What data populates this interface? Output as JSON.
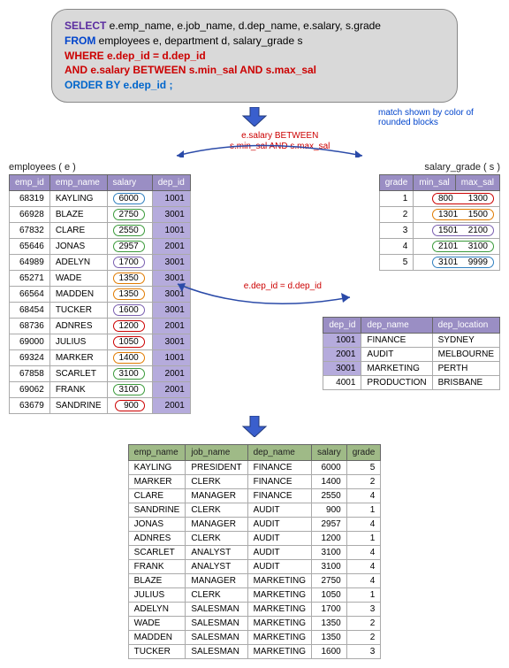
{
  "sql": {
    "select": "SELECT",
    "select_cols": " e.emp_name,  e.job_name, d.dep_name, e.salary, s.grade",
    "from": "FROM",
    "from_tbls": " employees e, department d, salary_grade s",
    "where": "WHERE",
    "where_cond": " e.dep_id = d.dep_id",
    "and": "AND",
    "and_cond": " e.salary BETWEEN s.min_sal AND s.max_sal",
    "order": "ORDER BY",
    "order_cols": " e.dep_id ;"
  },
  "note_match": "match shown by color of rounded blocks",
  "rel1_a": "e.salary BETWEEN",
  "rel1_b": "s.min_sal AND s.max_sal",
  "rel2": "e.dep_id = d.dep_id",
  "emp_title": "employees ( e )",
  "grade_title": "salary_grade ( s )",
  "emp_headers": [
    "emp_id",
    "emp_name",
    "salary",
    "dep_id"
  ],
  "grade_headers": [
    "grade",
    "min_sal",
    "max_sal"
  ],
  "dep_headers": [
    "dep_id",
    "dep_name",
    "dep_location"
  ],
  "result_headers": [
    "emp_name",
    "job_name",
    "dep_name",
    "salary",
    "grade"
  ],
  "pill_colors": {
    "g1": "#cc0000",
    "g2": "#e07b00",
    "g3": "#7a5fb0",
    "g4": "#3a9a3a",
    "g5": "#2f7fbf"
  },
  "employees": [
    {
      "id": "68319",
      "name": "KAYLING",
      "sal": "6000",
      "dep": "1001",
      "g": "g5"
    },
    {
      "id": "66928",
      "name": "BLAZE",
      "sal": "2750",
      "dep": "3001",
      "g": "g4"
    },
    {
      "id": "67832",
      "name": "CLARE",
      "sal": "2550",
      "dep": "1001",
      "g": "g4"
    },
    {
      "id": "65646",
      "name": "JONAS",
      "sal": "2957",
      "dep": "2001",
      "g": "g4"
    },
    {
      "id": "64989",
      "name": "ADELYN",
      "sal": "1700",
      "dep": "3001",
      "g": "g3"
    },
    {
      "id": "65271",
      "name": "WADE",
      "sal": "1350",
      "dep": "3001",
      "g": "g2"
    },
    {
      "id": "66564",
      "name": "MADDEN",
      "sal": "1350",
      "dep": "3001",
      "g": "g2"
    },
    {
      "id": "68454",
      "name": "TUCKER",
      "sal": "1600",
      "dep": "3001",
      "g": "g3"
    },
    {
      "id": "68736",
      "name": "ADNRES",
      "sal": "1200",
      "dep": "2001",
      "g": "g1"
    },
    {
      "id": "69000",
      "name": "JULIUS",
      "sal": "1050",
      "dep": "3001",
      "g": "g1"
    },
    {
      "id": "69324",
      "name": "MARKER",
      "sal": "1400",
      "dep": "1001",
      "g": "g2"
    },
    {
      "id": "67858",
      "name": "SCARLET",
      "sal": "3100",
      "dep": "2001",
      "g": "g4"
    },
    {
      "id": "69062",
      "name": "FRANK",
      "sal": "3100",
      "dep": "2001",
      "g": "g4"
    },
    {
      "id": "63679",
      "name": "SANDRINE",
      "sal": "900",
      "dep": "2001",
      "g": "g1"
    }
  ],
  "grades": [
    {
      "grade": "1",
      "min": "800",
      "max": "1300",
      "g": "g1"
    },
    {
      "grade": "2",
      "min": "1301",
      "max": "1500",
      "g": "g2"
    },
    {
      "grade": "3",
      "min": "1501",
      "max": "2100",
      "g": "g3"
    },
    {
      "grade": "4",
      "min": "2101",
      "max": "3100",
      "g": "g4"
    },
    {
      "grade": "5",
      "min": "3101",
      "max": "9999",
      "g": "g5"
    }
  ],
  "departments": [
    {
      "id": "1001",
      "name": "FINANCE",
      "loc": "SYDNEY",
      "hl": true
    },
    {
      "id": "2001",
      "name": "AUDIT",
      "loc": "MELBOURNE",
      "hl": true
    },
    {
      "id": "3001",
      "name": "MARKETING",
      "loc": "PERTH",
      "hl": true
    },
    {
      "id": "4001",
      "name": "PRODUCTION",
      "loc": "BRISBANE",
      "hl": false
    }
  ],
  "result": [
    [
      "KAYLING",
      "PRESIDENT",
      "FINANCE",
      "6000",
      "5"
    ],
    [
      "MARKER",
      "CLERK",
      "FINANCE",
      "1400",
      "2"
    ],
    [
      "CLARE",
      "MANAGER",
      "FINANCE",
      "2550",
      "4"
    ],
    [
      "SANDRINE",
      "CLERK",
      "AUDIT",
      "900",
      "1"
    ],
    [
      "JONAS",
      "MANAGER",
      "AUDIT",
      "2957",
      "4"
    ],
    [
      "ADNRES",
      "CLERK",
      "AUDIT",
      "1200",
      "1"
    ],
    [
      "SCARLET",
      "ANALYST",
      "AUDIT",
      "3100",
      "4"
    ],
    [
      "FRANK",
      "ANALYST",
      "AUDIT",
      "3100",
      "4"
    ],
    [
      "BLAZE",
      "MANAGER",
      "MARKETING",
      "2750",
      "4"
    ],
    [
      "JULIUS",
      "CLERK",
      "MARKETING",
      "1050",
      "1"
    ],
    [
      "ADELYN",
      "SALESMAN",
      "MARKETING",
      "1700",
      "3"
    ],
    [
      "WADE",
      "SALESMAN",
      "MARKETING",
      "1350",
      "2"
    ],
    [
      "MADDEN",
      "SALESMAN",
      "MARKETING",
      "1350",
      "2"
    ],
    [
      "TUCKER",
      "SALESMAN",
      "MARKETING",
      "1600",
      "3"
    ]
  ]
}
